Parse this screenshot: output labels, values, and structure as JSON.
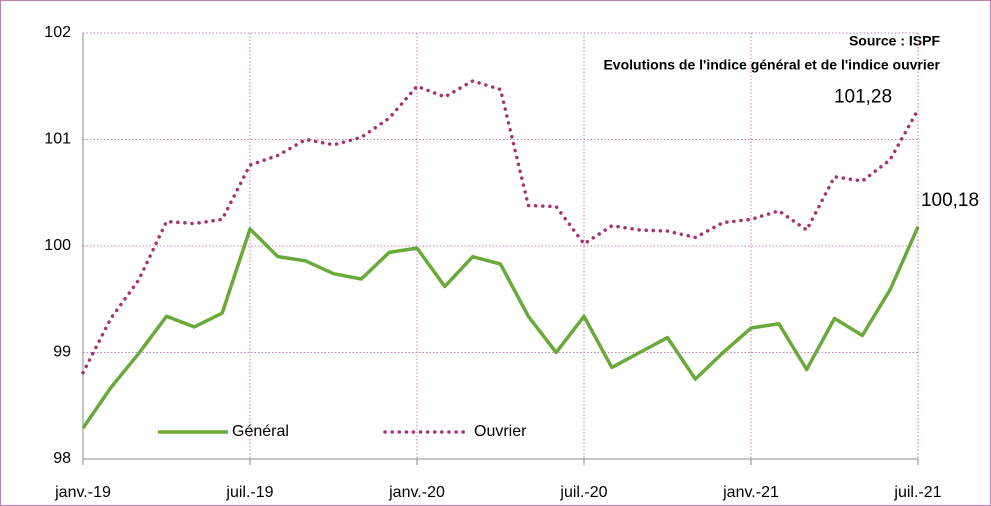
{
  "chart_data": {
    "type": "line",
    "title": "Evolutions de l'indice général et de l'indice ouvrier",
    "subtitle": "Source : ISPF",
    "categories": [
      "janv.-19",
      null,
      null,
      null,
      null,
      null,
      "juil.-19",
      null,
      null,
      null,
      null,
      null,
      "janv.-20",
      null,
      null,
      null,
      null,
      null,
      "juil.-20",
      null,
      null,
      null,
      null,
      null,
      "janv.-21",
      null,
      null,
      null,
      null,
      null,
      "juil.-21"
    ],
    "series": [
      {
        "name": "Général",
        "color": "#6aaa3a",
        "style": "solid",
        "values": [
          98.29,
          98.67,
          98.99,
          99.34,
          99.24,
          99.37,
          100.16,
          99.9,
          99.86,
          99.74,
          99.69,
          99.94,
          99.98,
          99.62,
          99.9,
          99.83,
          99.34,
          99.0,
          99.34,
          98.86,
          99.0,
          99.14,
          98.75,
          99.0,
          99.23,
          99.27,
          98.84,
          99.32,
          99.16,
          99.59,
          100.18
        ],
        "value_labels": [
          null,
          null,
          null,
          null,
          null,
          null,
          null,
          null,
          null,
          null,
          null,
          null,
          null,
          null,
          null,
          null,
          null,
          null,
          null,
          null,
          null,
          null,
          null,
          null,
          null,
          null,
          null,
          null,
          null,
          null,
          "100,18"
        ]
      },
      {
        "name": "Ouvrier",
        "color": "#a8326e",
        "style": "dotted",
        "values": [
          98.81,
          99.32,
          99.68,
          100.23,
          100.21,
          100.25,
          100.76,
          100.85,
          101.0,
          100.95,
          101.02,
          101.2,
          101.5,
          101.4,
          101.55,
          101.47,
          100.38,
          100.37,
          100.02,
          100.19,
          100.15,
          100.14,
          100.08,
          100.22,
          100.25,
          100.33,
          100.15,
          100.65,
          100.61,
          100.81,
          101.28
        ],
        "value_labels": [
          null,
          null,
          null,
          null,
          null,
          null,
          null,
          null,
          null,
          null,
          null,
          null,
          null,
          null,
          null,
          null,
          null,
          null,
          null,
          null,
          null,
          null,
          null,
          null,
          null,
          null,
          null,
          null,
          null,
          null,
          "101,28"
        ]
      }
    ],
    "ylim": [
      98,
      102
    ],
    "yticks": [
      98,
      99,
      100,
      101,
      102
    ],
    "grid": true
  }
}
